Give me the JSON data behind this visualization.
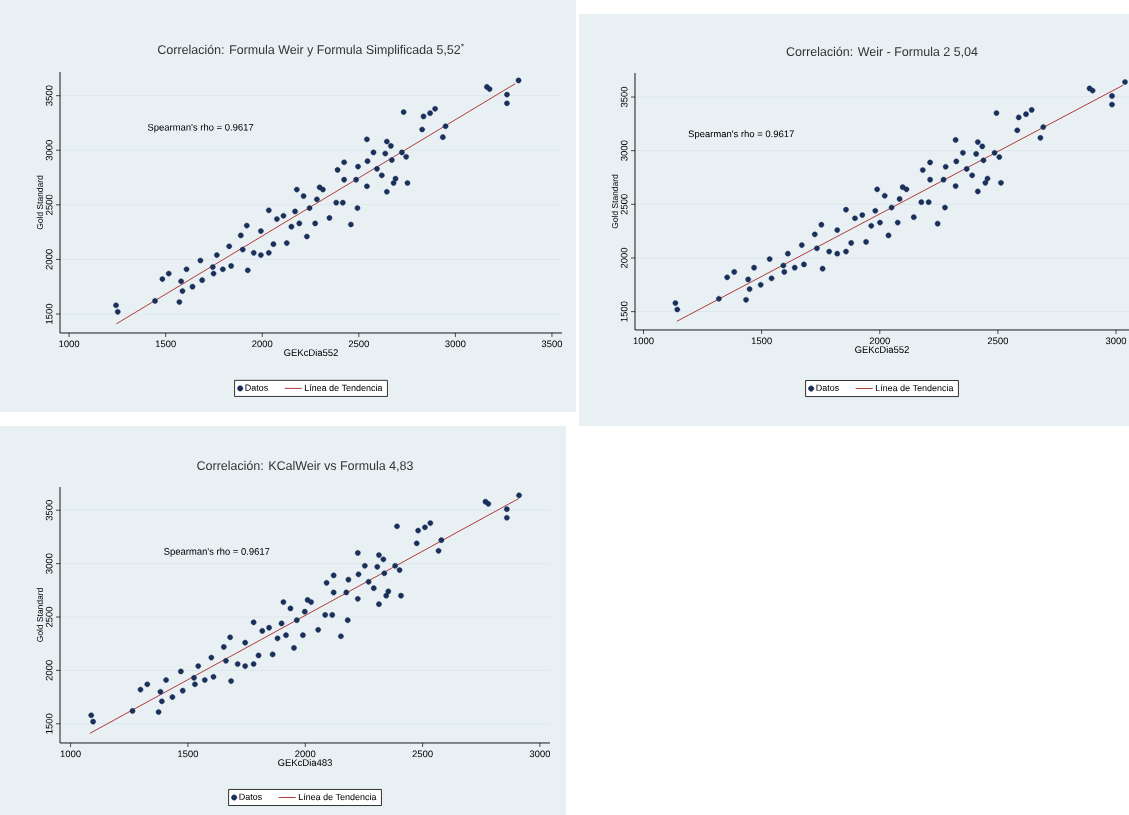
{
  "chart_data": [
    {
      "type": "scatter",
      "title": "Correlación: Formula Weir y Formula Simplificada 5,52$^{*}$",
      "xlabel": "GEKcDia552",
      "ylabel": "Gold Standard",
      "annotations": [
        "Spearman's rho = 0.9617"
      ],
      "xlim": [
        953,
        3552
      ],
      "ylim": [
        1326,
        3717
      ],
      "xticks": [
        1000,
        1500,
        2000,
        2500,
        3000,
        3500
      ],
      "yticks": [
        1500,
        2000,
        2500,
        3000,
        3500
      ],
      "grid": "y",
      "legend": "bottom",
      "series": [
        {
          "name": "Datos",
          "marker": "circle",
          "color": "#1a2f5a",
          "x": [
            1243,
            1252,
            1445,
            1483,
            1516,
            1571,
            1580,
            1587,
            1608,
            1639,
            1680,
            1689,
            1744,
            1748,
            1765,
            1796,
            1829,
            1839,
            1889,
            1899,
            1920,
            1925,
            1956,
            1993,
            1993,
            2034,
            2034,
            2058,
            2076,
            2110,
            2127,
            2151,
            2170,
            2179,
            2192,
            2214,
            2231,
            2245,
            2274,
            2283,
            2297,
            2314,
            2348,
            2383,
            2390,
            2417,
            2424,
            2424,
            2459,
            2486,
            2493,
            2496,
            2542,
            2542,
            2545,
            2576,
            2594,
            2619,
            2637,
            2645,
            2645,
            2666,
            2671,
            2680,
            2690,
            2723,
            2732,
            2745,
            2752,
            2828,
            2835,
            2869,
            2895,
            2935,
            2949,
            3163,
            3177,
            3267,
            3267,
            3327
          ],
          "values": [
            1580,
            1520,
            1620,
            1820,
            1870,
            1610,
            1800,
            1710,
            1910,
            1750,
            1990,
            1810,
            1930,
            1870,
            2040,
            1910,
            2120,
            1940,
            2220,
            2090,
            2310,
            1900,
            2060,
            2260,
            2040,
            2450,
            2060,
            2140,
            2370,
            2400,
            2150,
            2300,
            2440,
            2640,
            2330,
            2580,
            2210,
            2470,
            2330,
            2550,
            2660,
            2640,
            2380,
            2520,
            2820,
            2520,
            2890,
            2730,
            2320,
            2730,
            2470,
            2850,
            2670,
            3100,
            2900,
            2980,
            2830,
            2770,
            2970,
            3080,
            2620,
            3040,
            2910,
            2700,
            2740,
            2980,
            3350,
            2940,
            2700,
            3190,
            3310,
            3340,
            3380,
            3120,
            3220,
            3580,
            3560,
            3510,
            3430,
            3640
          ]
        },
        {
          "name": "Línea de Tendencia",
          "type": "line",
          "marker": "none",
          "color": "#b03a3a",
          "x": [
            1245,
            3310
          ],
          "values": [
            1410,
            3610
          ]
        }
      ]
    },
    {
      "type": "scatter",
      "title": "Correlación: Weir - Formula 2 5,04",
      "xlabel": "GEKcDia552",
      "ylabel": "Gold Standard",
      "annotations": [
        "Spearman's rho = 0.9617"
      ],
      "xlim": [
        964,
        3055
      ],
      "ylim": [
        1329,
        3724
      ],
      "xticks": [
        1000,
        1500,
        2000,
        2500,
        3000
      ],
      "yticks": [
        1500,
        2000,
        2500,
        3000,
        3500
      ],
      "grid": "y",
      "legend": "bottom",
      "series": [
        {
          "name": "Datos",
          "marker": "circle",
          "color": "#1a2f5a",
          "x": [
            1135,
            1143,
            1319,
            1354,
            1384,
            1434,
            1443,
            1449,
            1468,
            1496,
            1534,
            1542,
            1592,
            1596,
            1611,
            1640,
            1670,
            1679,
            1725,
            1734,
            1753,
            1758,
            1786,
            1820,
            1820,
            1857,
            1857,
            1879,
            1895,
            1926,
            1942,
            1964,
            1981,
            1989,
            2001,
            2021,
            2037,
            2050,
            2076,
            2084,
            2097,
            2113,
            2144,
            2176,
            2182,
            2207,
            2213,
            2213,
            2245,
            2270,
            2276,
            2279,
            2321,
            2321,
            2324,
            2352,
            2368,
            2391,
            2408,
            2415,
            2415,
            2434,
            2439,
            2447,
            2456,
            2486,
            2494,
            2506,
            2513,
            2582,
            2588,
            2619,
            2643,
            2680,
            2692,
            2888,
            2901,
            2983,
            2983,
            3038
          ],
          "values": [
            1580,
            1520,
            1620,
            1820,
            1870,
            1610,
            1800,
            1710,
            1910,
            1750,
            1990,
            1810,
            1930,
            1870,
            2040,
            1910,
            2120,
            1940,
            2220,
            2090,
            2310,
            1900,
            2060,
            2260,
            2040,
            2450,
            2060,
            2140,
            2370,
            2400,
            2150,
            2300,
            2440,
            2640,
            2330,
            2580,
            2210,
            2470,
            2330,
            2550,
            2660,
            2640,
            2380,
            2520,
            2820,
            2520,
            2890,
            2730,
            2320,
            2730,
            2470,
            2850,
            2670,
            3100,
            2900,
            2980,
            2830,
            2770,
            2970,
            3080,
            2620,
            3040,
            2910,
            2700,
            2740,
            2980,
            3350,
            2940,
            2700,
            3190,
            3310,
            3340,
            3380,
            3120,
            3220,
            3580,
            3560,
            3510,
            3430,
            3640
          ]
        },
        {
          "name": "Línea de Tendencia",
          "type": "line",
          "marker": "none",
          "color": "#b03a3a",
          "x": [
            1141,
            3030
          ],
          "values": [
            1410,
            3610
          ]
        }
      ]
    },
    {
      "type": "scatter",
      "title": "Correlación: KCalWeir vs Formula 4,83",
      "xlabel": "GEKcDia483",
      "ylabel": "Gold Standard",
      "annotations": [
        "Spearman's rho = 0.9617"
      ],
      "xlim": [
        955,
        3043
      ],
      "ylim": [
        1320,
        3718
      ],
      "xticks": [
        1000,
        1500,
        2000,
        2500,
        3000
      ],
      "yticks": [
        1500,
        2000,
        2500,
        3000,
        3500
      ],
      "grid": "y",
      "legend": "bottom",
      "series": [
        {
          "name": "Datos",
          "marker": "circle",
          "color": "#1a2f5a",
          "x": [
            1088,
            1096,
            1264,
            1298,
            1327,
            1375,
            1383,
            1389,
            1407,
            1434,
            1470,
            1478,
            1526,
            1530,
            1544,
            1572,
            1600,
            1609,
            1653,
            1662,
            1680,
            1684,
            1712,
            1744,
            1744,
            1780,
            1780,
            1801,
            1817,
            1846,
            1861,
            1882,
            1899,
            1907,
            1918,
            1937,
            1952,
            1964,
            1990,
            1998,
            2010,
            2025,
            2055,
            2085,
            2091,
            2115,
            2121,
            2121,
            2152,
            2175,
            2181,
            2184,
            2224,
            2224,
            2227,
            2254,
            2270,
            2292,
            2307,
            2314,
            2314,
            2333,
            2337,
            2345,
            2354,
            2383,
            2391,
            2402,
            2408,
            2475,
            2481,
            2510,
            2533,
            2568,
            2580,
            2768,
            2780,
            2859,
            2859,
            2911
          ],
          "values": [
            1580,
            1520,
            1620,
            1820,
            1870,
            1610,
            1800,
            1710,
            1910,
            1750,
            1990,
            1810,
            1930,
            1870,
            2040,
            1910,
            2120,
            1940,
            2220,
            2090,
            2310,
            1900,
            2060,
            2260,
            2040,
            2450,
            2060,
            2140,
            2370,
            2400,
            2150,
            2300,
            2440,
            2640,
            2330,
            2580,
            2210,
            2470,
            2330,
            2550,
            2660,
            2640,
            2380,
            2520,
            2820,
            2520,
            2890,
            2730,
            2320,
            2730,
            2470,
            2850,
            2670,
            3100,
            2900,
            2980,
            2830,
            2770,
            2970,
            3080,
            2620,
            3040,
            2910,
            2700,
            2740,
            2980,
            3350,
            2940,
            2700,
            3190,
            3310,
            3340,
            3380,
            3120,
            3220,
            3580,
            3560,
            3510,
            3430,
            3640
          ]
        },
        {
          "name": "Línea de Tendencia",
          "type": "line",
          "marker": "none",
          "color": "#b03a3a",
          "x": [
            1082,
            2910
          ],
          "values": [
            1410,
            3610
          ]
        }
      ]
    }
  ]
}
